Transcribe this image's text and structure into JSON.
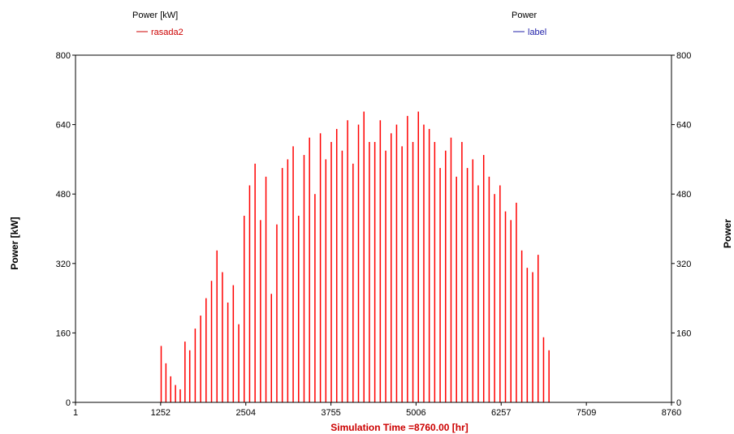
{
  "legend": {
    "left_title": "Power [kW]",
    "left_series": "rasada2",
    "right_title": "Power",
    "right_series": "label"
  },
  "chart_data": {
    "type": "bar",
    "xlabel": "Simulation Time =8760.00 [hr]",
    "ylabel_left": "Power [kW]",
    "ylabel_right": "Power",
    "xlim": [
      1,
      8760
    ],
    "ylim": [
      0,
      800
    ],
    "x_ticks": [
      "1",
      "1252",
      "2504",
      "3755",
      "5006",
      "6257",
      "7509",
      "8760"
    ],
    "y_ticks_left": [
      "0",
      "160",
      "320",
      "480",
      "640",
      "800"
    ],
    "y_ticks_right": [
      "0",
      "160",
      "320",
      "480",
      "640",
      "800"
    ],
    "grid": false,
    "legend_placement": "top",
    "series": [
      {
        "name": "rasada2",
        "color": "#ff0000",
        "x": [
          1260,
          1330,
          1400,
          1470,
          1540,
          1610,
          1680,
          1760,
          1840,
          1920,
          2000,
          2080,
          2160,
          2240,
          2320,
          2400,
          2480,
          2560,
          2640,
          2720,
          2800,
          2880,
          2960,
          3040,
          3120,
          3200,
          3280,
          3360,
          3440,
          3520,
          3600,
          3680,
          3760,
          3840,
          3920,
          4000,
          4080,
          4160,
          4240,
          4320,
          4400,
          4480,
          4560,
          4640,
          4720,
          4800,
          4880,
          4960,
          5040,
          5120,
          5200,
          5280,
          5360,
          5440,
          5520,
          5600,
          5680,
          5760,
          5840,
          5920,
          6000,
          6080,
          6160,
          6240,
          6320,
          6400,
          6480,
          6560,
          6640,
          6720,
          6800,
          6880,
          6960
        ],
        "values": [
          130,
          90,
          60,
          40,
          30,
          140,
          120,
          170,
          200,
          240,
          280,
          350,
          300,
          230,
          270,
          180,
          430,
          500,
          550,
          420,
          520,
          250,
          410,
          540,
          560,
          590,
          430,
          570,
          610,
          480,
          620,
          560,
          600,
          630,
          580,
          650,
          550,
          640,
          670,
          600,
          600,
          650,
          580,
          620,
          640,
          590,
          660,
          600,
          670,
          640,
          630,
          600,
          540,
          580,
          610,
          520,
          600,
          540,
          560,
          500,
          570,
          520,
          480,
          500,
          440,
          420,
          460,
          350,
          310,
          300,
          340,
          150,
          120
        ]
      },
      {
        "name": "label",
        "color": "#2222aa",
        "x": [],
        "values": []
      }
    ]
  }
}
